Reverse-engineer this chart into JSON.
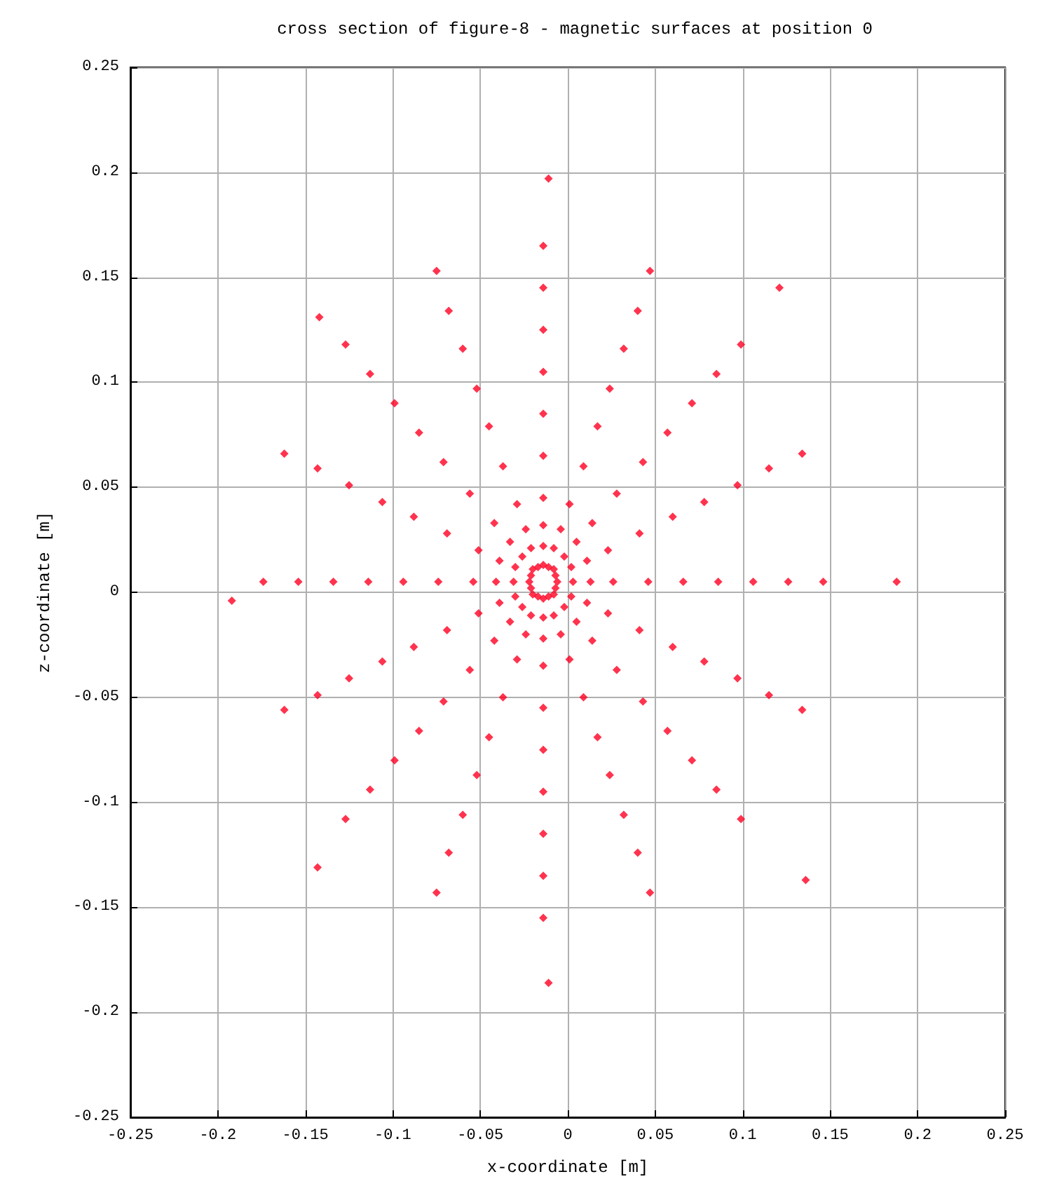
{
  "chart_data": {
    "type": "scatter",
    "title": "cross section of figure-8 - magnetic surfaces at position 0",
    "xlabel": "x-coordinate [m]",
    "ylabel": "z-coordinate [m]",
    "xlim": [
      -0.25,
      0.25
    ],
    "xticks": [
      -0.25,
      -0.2,
      -0.15,
      -0.1,
      -0.05,
      0,
      0.05,
      0.1,
      0.15,
      0.2,
      0.25
    ],
    "ylim": [
      -0.25,
      0.25
    ],
    "yticks": [
      -0.25,
      -0.2,
      -0.15,
      -0.1,
      -0.05,
      0,
      0.05,
      0.1,
      0.15,
      0.2,
      0.25
    ],
    "grid": true,
    "marker": "diamond",
    "series": [
      {
        "color": "#ff0022",
        "x": [
          -0.006,
          -0.008,
          -0.014,
          -0.02,
          -0.022,
          -0.02,
          -0.014,
          -0.008,
          0.003,
          -0.002,
          -0.014,
          -0.026,
          -0.031,
          -0.026,
          -0.014,
          -0.002,
          0.013,
          0.005,
          -0.014,
          -0.033,
          -0.041,
          -0.033,
          -0.014,
          0.005,
          0.026,
          0.014,
          -0.014,
          -0.042,
          -0.054,
          -0.042,
          -0.014,
          0.014,
          0.046,
          0.028,
          -0.014,
          -0.056,
          -0.074,
          -0.056,
          -0.014,
          0.028,
          0.066,
          0.043,
          -0.014,
          -0.071,
          -0.094,
          -0.071,
          -0.014,
          0.043,
          0.086,
          0.057,
          -0.014,
          -0.085,
          -0.114,
          -0.085,
          -0.014,
          0.057,
          0.106,
          0.071,
          -0.014,
          -0.099,
          -0.134,
          -0.099,
          -0.014,
          0.071,
          0.126,
          0.085,
          -0.014,
          -0.113,
          -0.154,
          -0.113,
          -0.014,
          0.085,
          0.146,
          0.099,
          -0.014,
          -0.127,
          -0.174,
          -0.127,
          -0.014,
          0.099,
          0.188,
          0.121,
          -0.011,
          -0.142,
          -0.192,
          -0.143,
          -0.011,
          0.136,
          -0.007,
          -0.011,
          -0.017,
          -0.021,
          -0.021,
          -0.017,
          -0.011,
          -0.007,
          0.002,
          -0.008,
          -0.021,
          -0.03,
          -0.03,
          -0.021,
          -0.008,
          0.002,
          0.011,
          -0.004,
          -0.024,
          -0.039,
          -0.039,
          -0.024,
          -0.004,
          0.011,
          0.023,
          0.001,
          -0.029,
          -0.051,
          -0.051,
          -0.029,
          0.001,
          0.023,
          0.041,
          0.009,
          -0.037,
          -0.069,
          -0.069,
          -0.037,
          0.009,
          0.041,
          0.06,
          0.017,
          -0.045,
          -0.088,
          -0.088,
          -0.045,
          0.017,
          0.06,
          0.078,
          0.024,
          -0.052,
          -0.106,
          -0.106,
          -0.052,
          0.024,
          0.078,
          0.097,
          0.032,
          -0.06,
          -0.125,
          -0.125,
          -0.06,
          0.032,
          0.097,
          0.115,
          0.04,
          -0.068,
          -0.143,
          -0.143,
          -0.068,
          0.04,
          0.115,
          0.134,
          0.047,
          -0.075,
          -0.162,
          -0.162,
          -0.075,
          0.047,
          0.134
        ],
        "values": [
          0.005,
          0.011,
          0.013,
          0.011,
          0.005,
          -0.001,
          -0.003,
          -0.001,
          0.005,
          0.017,
          0.022,
          0.017,
          0.005,
          -0.007,
          -0.012,
          -0.007,
          0.005,
          0.024,
          0.032,
          0.024,
          0.005,
          -0.014,
          -0.022,
          -0.014,
          0.005,
          0.033,
          0.045,
          0.033,
          0.005,
          -0.023,
          -0.035,
          -0.023,
          0.005,
          0.047,
          0.065,
          0.047,
          0.005,
          -0.037,
          -0.055,
          -0.037,
          0.005,
          0.062,
          0.085,
          0.062,
          0.005,
          -0.052,
          -0.075,
          -0.052,
          0.005,
          0.076,
          0.105,
          0.076,
          0.005,
          -0.066,
          -0.095,
          -0.066,
          0.005,
          0.09,
          0.125,
          0.09,
          0.005,
          -0.08,
          -0.115,
          -0.08,
          0.005,
          0.104,
          0.145,
          0.104,
          0.005,
          -0.094,
          -0.135,
          -0.094,
          0.005,
          0.118,
          0.165,
          0.118,
          0.005,
          -0.108,
          -0.155,
          -0.108,
          0.005,
          0.145,
          0.197,
          0.131,
          -0.004,
          -0.131,
          -0.186,
          -0.137,
          0.008,
          0.012,
          0.012,
          0.008,
          0.002,
          -0.002,
          -0.002,
          0.002,
          0.012,
          0.021,
          0.021,
          0.012,
          -0.002,
          -0.011,
          -0.011,
          -0.002,
          0.015,
          0.03,
          0.03,
          0.015,
          -0.005,
          -0.02,
          -0.02,
          -0.005,
          0.02,
          0.042,
          0.042,
          0.02,
          -0.01,
          -0.032,
          -0.032,
          -0.01,
          0.028,
          0.06,
          0.06,
          0.028,
          -0.018,
          -0.05,
          -0.05,
          -0.018,
          0.036,
          0.079,
          0.079,
          0.036,
          -0.026,
          -0.069,
          -0.069,
          -0.026,
          0.043,
          0.097,
          0.097,
          0.043,
          -0.033,
          -0.087,
          -0.087,
          -0.033,
          0.051,
          0.116,
          0.116,
          0.051,
          -0.041,
          -0.106,
          -0.106,
          -0.041,
          0.059,
          0.134,
          0.134,
          0.059,
          -0.049,
          -0.124,
          -0.124,
          -0.049,
          0.066,
          0.153,
          0.153,
          0.066,
          -0.056,
          -0.143,
          -0.143,
          -0.056
        ]
      }
    ]
  }
}
